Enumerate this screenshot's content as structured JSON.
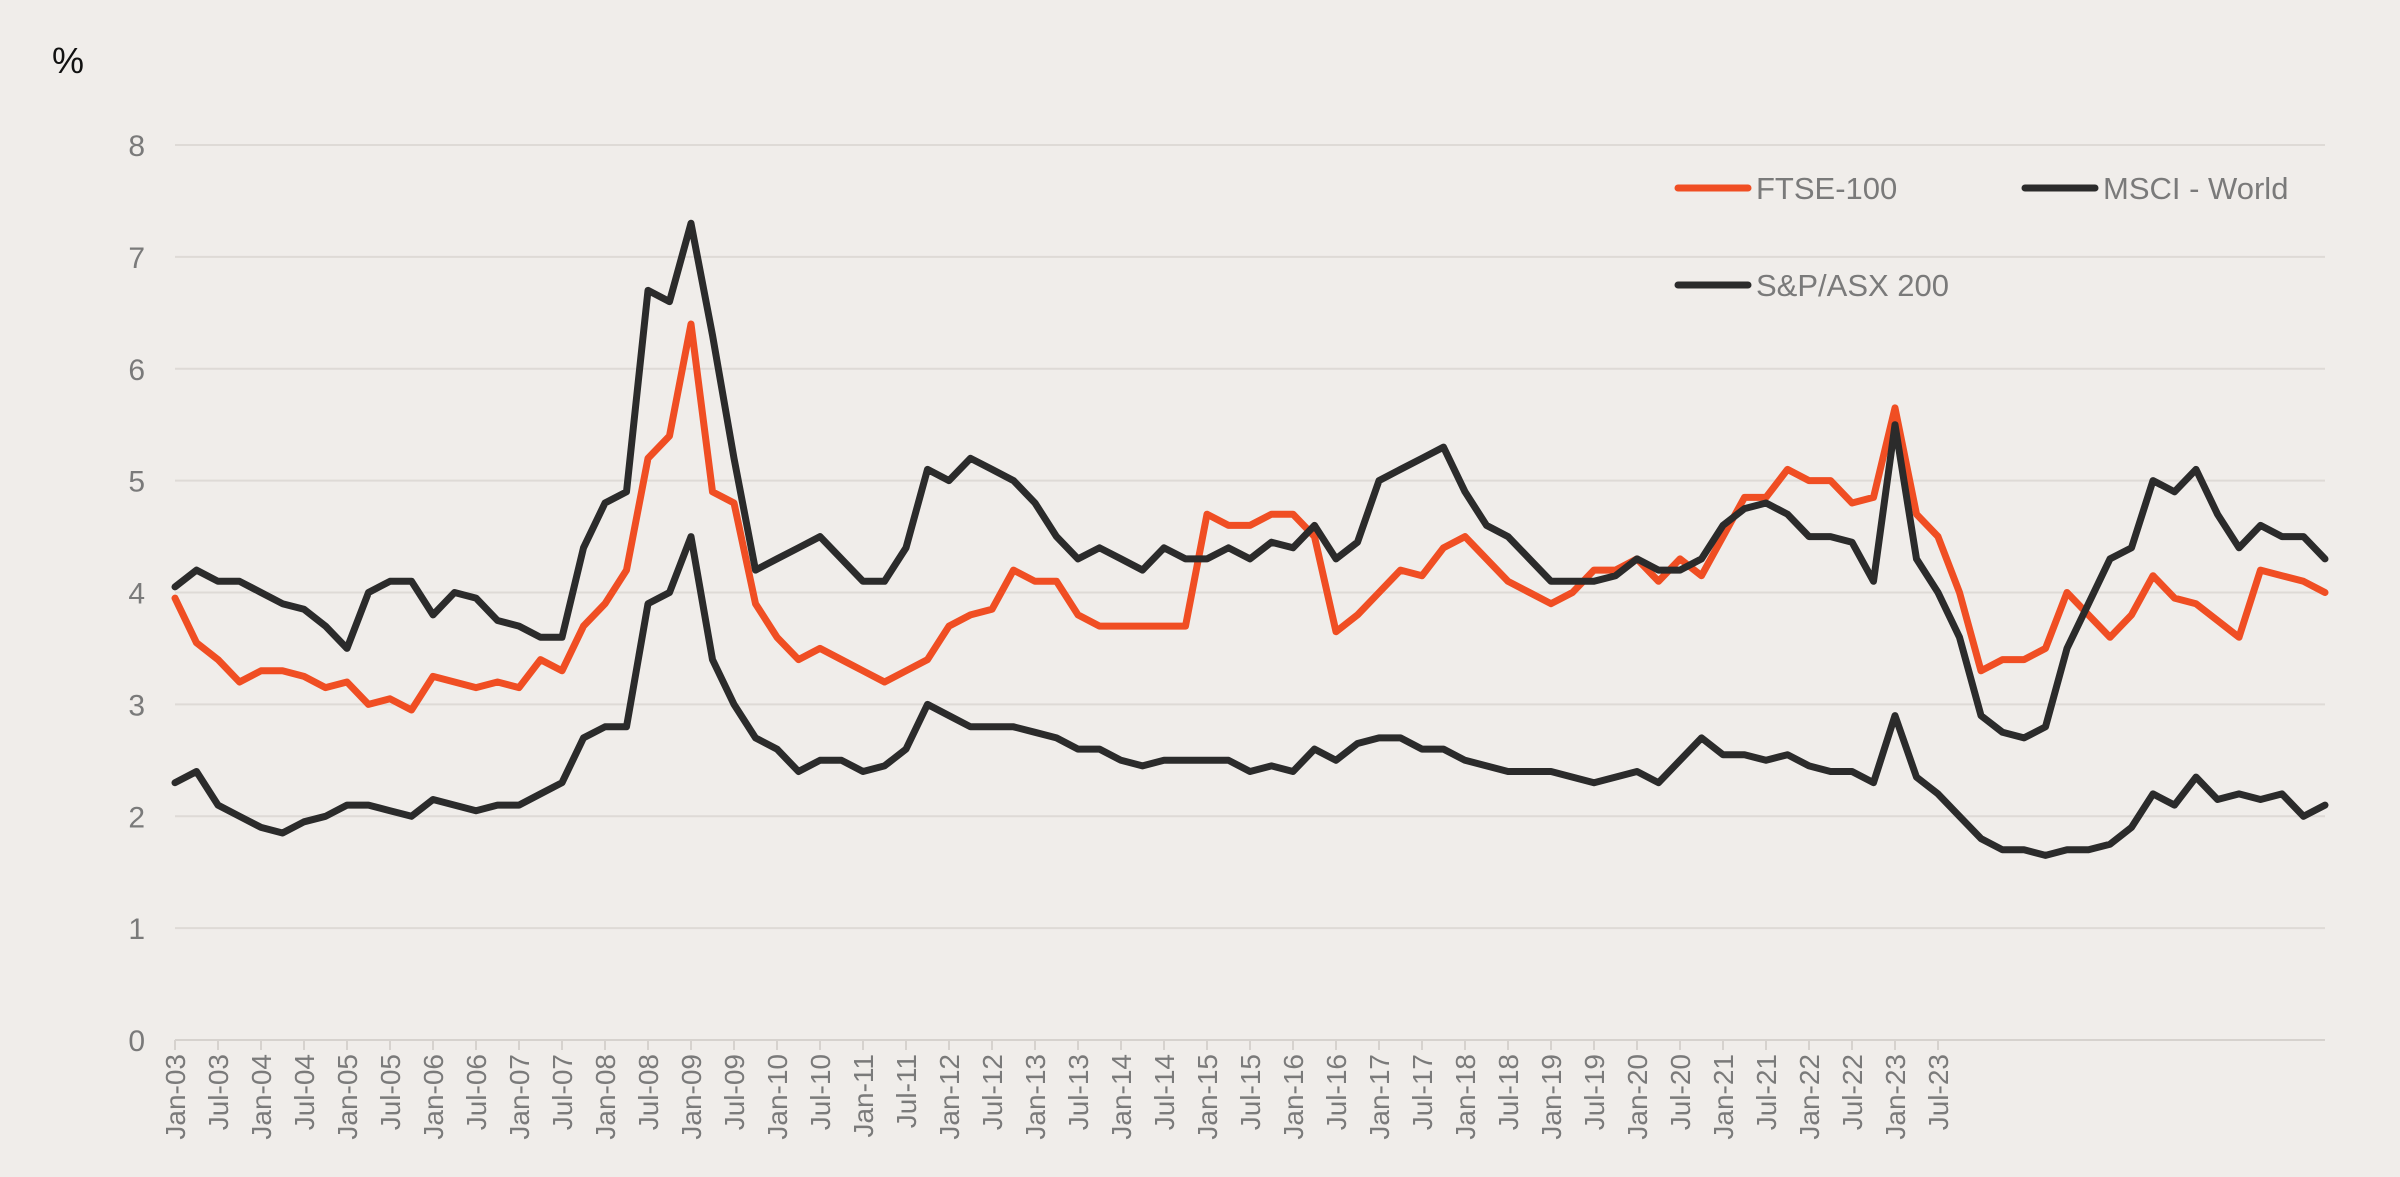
{
  "chart_data": {
    "type": "line",
    "title": "",
    "ylabel": "%",
    "xlabel": "",
    "ylim": [
      0,
      8
    ],
    "yticks": [
      "0",
      "1",
      "2",
      "3",
      "4",
      "5",
      "6",
      "7",
      "8"
    ],
    "grid": true,
    "legend_position": "top-right",
    "x_start": "Jan-03",
    "x_step": "quarterly",
    "x_tick_labels": [
      "Jan-03",
      "Jul-03",
      "Jan-04",
      "Jul-04",
      "Jan-05",
      "Jul-05",
      "Jan-06",
      "Jul-06",
      "Jan-07",
      "Jul-07",
      "Jan-08",
      "Jul-08",
      "Jan-09",
      "Jul-09",
      "Jan-10",
      "Jul-10",
      "Jan-11",
      "Jul-11",
      "Jan-12",
      "Jul-12",
      "Jan-13",
      "Jul-13",
      "Jan-14",
      "Jul-14",
      "Jan-15",
      "Jul-15",
      "Jan-16",
      "Jul-16",
      "Jan-17",
      "Jul-17",
      "Jan-18",
      "Jul-18",
      "Jan-19",
      "Jul-19",
      "Jan-20",
      "Jul-20",
      "Jan-21",
      "Jul-21",
      "Jan-22",
      "Jul-22",
      "Jan-23",
      "Jul-23"
    ],
    "series": [
      {
        "name": "FTSE-100",
        "color": "#f04e23",
        "values": [
          3.95,
          3.55,
          3.4,
          3.2,
          3.3,
          3.3,
          3.25,
          3.15,
          3.2,
          3.0,
          3.05,
          2.95,
          3.25,
          3.2,
          3.15,
          3.2,
          3.15,
          3.4,
          3.3,
          3.7,
          3.9,
          4.2,
          5.2,
          5.4,
          6.4,
          4.9,
          4.8,
          3.9,
          3.6,
          3.4,
          3.5,
          3.4,
          3.3,
          3.2,
          3.3,
          3.4,
          3.7,
          3.8,
          3.85,
          4.2,
          4.1,
          4.1,
          3.8,
          3.7,
          3.7,
          3.7,
          3.7,
          3.7,
          4.7,
          4.6,
          4.6,
          4.7,
          4.7,
          4.5,
          3.65,
          3.8,
          4.0,
          4.2,
          4.15,
          4.4,
          4.5,
          4.3,
          4.1,
          4.0,
          3.9,
          4.0,
          4.2,
          4.2,
          4.3,
          4.1,
          4.3,
          4.15,
          4.5,
          4.85,
          4.85,
          5.1,
          5.0,
          5.0,
          4.8,
          4.85,
          5.65,
          4.7,
          4.5,
          4.0,
          3.3,
          3.4,
          3.4,
          3.5,
          4.0,
          3.8,
          3.6,
          3.8,
          4.15,
          3.95,
          3.9,
          3.75,
          3.6,
          4.2,
          4.15,
          4.1,
          4.0
        ]
      },
      {
        "name": "MSCI - World",
        "color": "#2b2b2b",
        "values": [
          4.05,
          4.2,
          4.1,
          4.1,
          4.0,
          3.9,
          3.85,
          3.7,
          3.5,
          4.0,
          4.1,
          4.1,
          3.8,
          4.0,
          3.95,
          3.75,
          3.7,
          3.6,
          3.6,
          4.4,
          4.8,
          4.9,
          6.7,
          6.6,
          7.3,
          6.3,
          5.2,
          4.2,
          4.3,
          4.4,
          4.5,
          4.3,
          4.1,
          4.1,
          4.4,
          5.1,
          5.0,
          5.2,
          5.1,
          5.0,
          4.8,
          4.5,
          4.3,
          4.4,
          4.3,
          4.2,
          4.4,
          4.3,
          4.3,
          4.4,
          4.3,
          4.45,
          4.4,
          4.6,
          4.3,
          4.45,
          5.0,
          5.1,
          5.2,
          5.3,
          4.9,
          4.6,
          4.5,
          4.3,
          4.1,
          4.1,
          4.1,
          4.15,
          4.3,
          4.2,
          4.2,
          4.3,
          4.6,
          4.75,
          4.8,
          4.7,
          4.5,
          4.5,
          4.45,
          4.1,
          5.5,
          4.3,
          4.0,
          3.6,
          2.9,
          2.75,
          2.7,
          2.8,
          3.5,
          3.9,
          4.3,
          4.4,
          5.0,
          4.9,
          5.1,
          4.7,
          4.4,
          4.6,
          4.5,
          4.5,
          4.3
        ]
      },
      {
        "name": "S&P/ASX 200",
        "color": "#2b2b2b",
        "values": [
          2.3,
          2.4,
          2.1,
          2.0,
          1.9,
          1.85,
          1.95,
          2.0,
          2.1,
          2.1,
          2.05,
          2.0,
          2.15,
          2.1,
          2.05,
          2.1,
          2.1,
          2.2,
          2.3,
          2.7,
          2.8,
          2.8,
          3.9,
          4.0,
          4.5,
          3.4,
          3.0,
          2.7,
          2.6,
          2.4,
          2.5,
          2.5,
          2.4,
          2.45,
          2.6,
          3.0,
          2.9,
          2.8,
          2.8,
          2.8,
          2.75,
          2.7,
          2.6,
          2.6,
          2.5,
          2.45,
          2.5,
          2.5,
          2.5,
          2.5,
          2.4,
          2.45,
          2.4,
          2.6,
          2.5,
          2.65,
          2.7,
          2.7,
          2.6,
          2.6,
          2.5,
          2.45,
          2.4,
          2.4,
          2.4,
          2.35,
          2.3,
          2.35,
          2.4,
          2.3,
          2.5,
          2.7,
          2.55,
          2.55,
          2.5,
          2.55,
          2.45,
          2.4,
          2.4,
          2.3,
          2.9,
          2.35,
          2.2,
          2.0,
          1.8,
          1.7,
          1.7,
          1.65,
          1.7,
          1.7,
          1.75,
          1.9,
          2.2,
          2.1,
          2.35,
          2.15,
          2.2,
          2.15,
          2.2,
          2.0,
          2.1
        ]
      }
    ]
  }
}
